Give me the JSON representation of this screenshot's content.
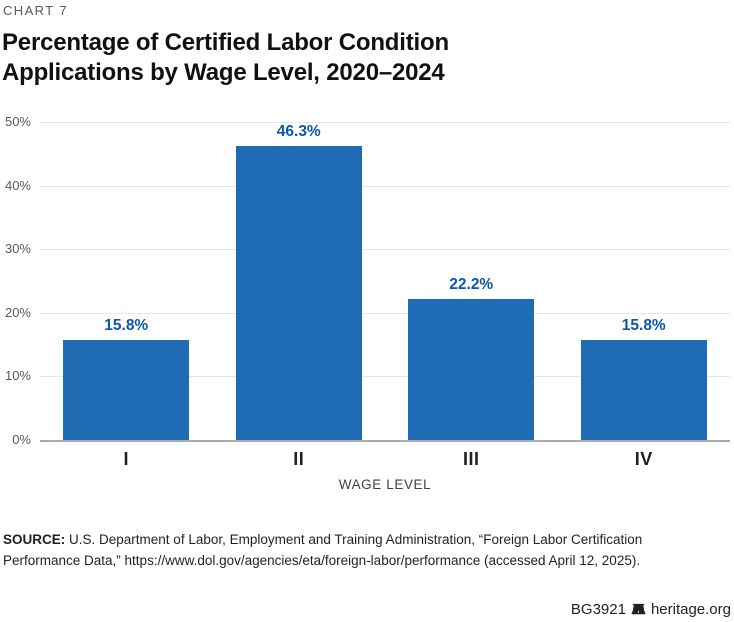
{
  "header": {
    "eyebrow": "CHART 7",
    "title_line1": "Percentage of Certified Labor Condition",
    "title_line2": "Applications by Wage Level, 2020–2024"
  },
  "chart_data": {
    "type": "bar",
    "title": "Percentage of Certified Labor Condition Applications by Wage Level, 2020–2024",
    "categories": [
      "I",
      "II",
      "III",
      "IV"
    ],
    "values": [
      15.8,
      46.3,
      22.2,
      15.8
    ],
    "value_labels": [
      "15.8%",
      "46.3%",
      "22.2%",
      "15.8%"
    ],
    "xlabel": "WAGE LEVEL",
    "ylabel": "",
    "ylim": [
      0,
      50
    ],
    "yticks": [
      0,
      10,
      20,
      30,
      40,
      50
    ],
    "ytick_labels": [
      "0%",
      "10%",
      "20%",
      "30%",
      "40%",
      "50%"
    ],
    "grid": true,
    "legend": "none",
    "bar_color": "#1F6CB5",
    "value_label_color": "#0B57AB"
  },
  "source": {
    "label": "SOURCE:",
    "text": " U.S. Department of Labor, Employment and Training Administration, “Foreign Labor Certification Performance Data,” https://www.dol.gov/agencies/eta/foreign-labor/performance (accessed April 12, 2025)."
  },
  "footer": {
    "id": "BG3921",
    "site": "heritage.org",
    "icon": "liberty-bell-icon"
  }
}
